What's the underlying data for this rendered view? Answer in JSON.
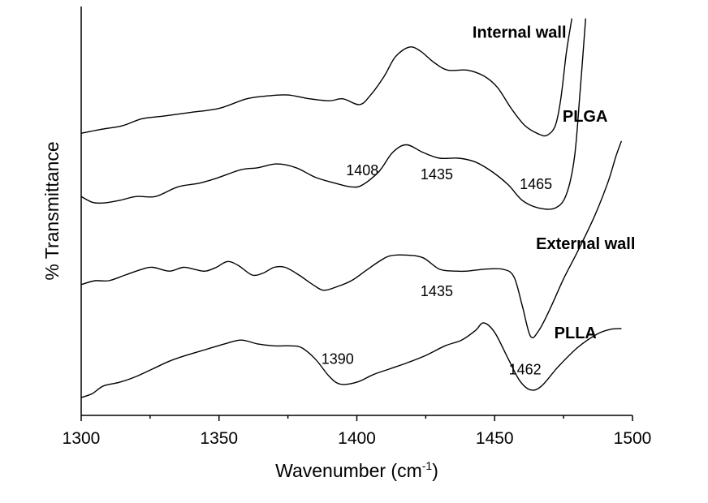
{
  "chart_data": {
    "type": "line",
    "xlabel": "Wavenumber (cm",
    "xlabel_superscript": "-1",
    "xlabel_suffix": ")",
    "ylabel": "% Transmittance",
    "xlim": [
      1300,
      1500
    ],
    "ylim": [
      0,
      1
    ],
    "y_ticks": false,
    "grid": false,
    "x_ticks": [
      1300,
      1350,
      1400,
      1450,
      1500
    ],
    "series": [
      {
        "name": "Internal wall",
        "points": [
          [
            1300,
            0.69
          ],
          [
            1307,
            0.7
          ],
          [
            1315,
            0.71
          ],
          [
            1322,
            0.728
          ],
          [
            1330,
            0.735
          ],
          [
            1340,
            0.745
          ],
          [
            1350,
            0.755
          ],
          [
            1360,
            0.78
          ],
          [
            1368,
            0.788
          ],
          [
            1375,
            0.79
          ],
          [
            1383,
            0.78
          ],
          [
            1390,
            0.775
          ],
          [
            1395,
            0.78
          ],
          [
            1401,
            0.765
          ],
          [
            1405,
            0.79
          ],
          [
            1410,
            0.84
          ],
          [
            1414,
            0.89
          ],
          [
            1419,
            0.915
          ],
          [
            1423,
            0.905
          ],
          [
            1428,
            0.875
          ],
          [
            1433,
            0.855
          ],
          [
            1440,
            0.855
          ],
          [
            1446,
            0.84
          ],
          [
            1451,
            0.81
          ],
          [
            1456,
            0.755
          ],
          [
            1461,
            0.71
          ],
          [
            1466,
            0.688
          ],
          [
            1469,
            0.685
          ],
          [
            1472,
            0.71
          ],
          [
            1474,
            0.78
          ],
          [
            1476,
            0.9
          ],
          [
            1478,
            0.99
          ]
        ]
      },
      {
        "name": "PLGA",
        "points": [
          [
            1300,
            0.525
          ],
          [
            1304,
            0.51
          ],
          [
            1308,
            0.508
          ],
          [
            1314,
            0.515
          ],
          [
            1320,
            0.525
          ],
          [
            1327,
            0.525
          ],
          [
            1335,
            0.55
          ],
          [
            1343,
            0.56
          ],
          [
            1350,
            0.575
          ],
          [
            1358,
            0.595
          ],
          [
            1364,
            0.6
          ],
          [
            1371,
            0.61
          ],
          [
            1378,
            0.6
          ],
          [
            1385,
            0.575
          ],
          [
            1392,
            0.56
          ],
          [
            1398,
            0.55
          ],
          [
            1402,
            0.555
          ],
          [
            1408,
            0.59
          ],
          [
            1413,
            0.64
          ],
          [
            1418,
            0.66
          ],
          [
            1424,
            0.64
          ],
          [
            1430,
            0.625
          ],
          [
            1437,
            0.625
          ],
          [
            1443,
            0.615
          ],
          [
            1449,
            0.59
          ],
          [
            1455,
            0.555
          ],
          [
            1460,
            0.515
          ],
          [
            1466,
            0.495
          ],
          [
            1472,
            0.495
          ],
          [
            1476,
            0.53
          ],
          [
            1479,
            0.63
          ],
          [
            1481,
            0.8
          ],
          [
            1483,
            0.99
          ]
        ]
      },
      {
        "name": "External wall",
        "points": [
          [
            1300,
            0.295
          ],
          [
            1305,
            0.305
          ],
          [
            1310,
            0.305
          ],
          [
            1316,
            0.32
          ],
          [
            1322,
            0.335
          ],
          [
            1326,
            0.34
          ],
          [
            1332,
            0.33
          ],
          [
            1337,
            0.34
          ],
          [
            1341,
            0.335
          ],
          [
            1345,
            0.33
          ],
          [
            1349,
            0.34
          ],
          [
            1353,
            0.355
          ],
          [
            1357,
            0.345
          ],
          [
            1362,
            0.32
          ],
          [
            1366,
            0.325
          ],
          [
            1370,
            0.34
          ],
          [
            1374,
            0.34
          ],
          [
            1379,
            0.32
          ],
          [
            1384,
            0.295
          ],
          [
            1388,
            0.28
          ],
          [
            1393,
            0.29
          ],
          [
            1398,
            0.305
          ],
          [
            1403,
            0.33
          ],
          [
            1408,
            0.355
          ],
          [
            1412,
            0.37
          ],
          [
            1418,
            0.372
          ],
          [
            1424,
            0.365
          ],
          [
            1430,
            0.335
          ],
          [
            1436,
            0.33
          ],
          [
            1440,
            0.33
          ],
          [
            1446,
            0.335
          ],
          [
            1453,
            0.335
          ],
          [
            1457,
            0.315
          ],
          [
            1460,
            0.24
          ],
          [
            1463,
            0.16
          ],
          [
            1466,
            0.175
          ],
          [
            1470,
            0.23
          ],
          [
            1475,
            0.31
          ],
          [
            1480,
            0.38
          ],
          [
            1486,
            0.47
          ],
          [
            1491,
            0.56
          ],
          [
            1494,
            0.63
          ],
          [
            1496,
            0.67
          ]
        ]
      },
      {
        "name": "PLLA",
        "points": [
          [
            1300,
            0.0
          ],
          [
            1304,
            0.01
          ],
          [
            1308,
            0.03
          ],
          [
            1314,
            0.04
          ],
          [
            1320,
            0.055
          ],
          [
            1326,
            0.075
          ],
          [
            1332,
            0.095
          ],
          [
            1338,
            0.11
          ],
          [
            1345,
            0.125
          ],
          [
            1352,
            0.14
          ],
          [
            1358,
            0.15
          ],
          [
            1364,
            0.14
          ],
          [
            1370,
            0.135
          ],
          [
            1376,
            0.135
          ],
          [
            1380,
            0.13
          ],
          [
            1385,
            0.1
          ],
          [
            1390,
            0.055
          ],
          [
            1394,
            0.035
          ],
          [
            1400,
            0.04
          ],
          [
            1406,
            0.06
          ],
          [
            1412,
            0.075
          ],
          [
            1418,
            0.09
          ],
          [
            1425,
            0.11
          ],
          [
            1432,
            0.135
          ],
          [
            1438,
            0.15
          ],
          [
            1443,
            0.175
          ],
          [
            1446,
            0.195
          ],
          [
            1450,
            0.17
          ],
          [
            1455,
            0.1
          ],
          [
            1459,
            0.045
          ],
          [
            1463,
            0.02
          ],
          [
            1467,
            0.03
          ],
          [
            1473,
            0.08
          ],
          [
            1480,
            0.13
          ],
          [
            1487,
            0.165
          ],
          [
            1492,
            0.178
          ],
          [
            1496,
            0.18
          ]
        ]
      }
    ],
    "series_labels": [
      {
        "text": "Internal wall",
        "x": 1476,
        "y": 0.94
      },
      {
        "text": "PLGA",
        "x": 1491,
        "y": 0.72
      },
      {
        "text": "External wall",
        "x": 1501,
        "y": 0.388
      },
      {
        "text": "PLLA",
        "x": 1487,
        "y": 0.155
      }
    ],
    "annotations": [
      {
        "text": "1408",
        "x": 1402,
        "y": 0.58
      },
      {
        "text": "1435",
        "x": 1429,
        "y": 0.57
      },
      {
        "text": "1465",
        "x": 1465,
        "y": 0.545
      },
      {
        "text": "1435",
        "x": 1429,
        "y": 0.265
      },
      {
        "text": "1390",
        "x": 1393,
        "y": 0.088
      },
      {
        "text": "1462",
        "x": 1461,
        "y": 0.06
      }
    ]
  }
}
